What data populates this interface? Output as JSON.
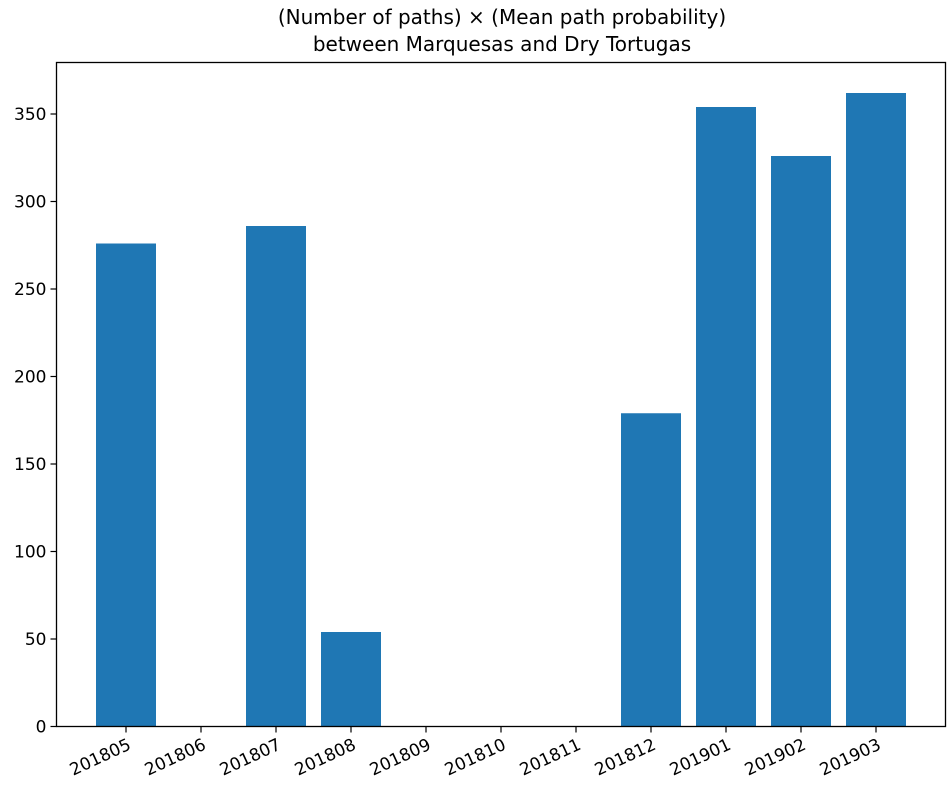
{
  "chart_data": {
    "type": "bar",
    "title": "(Number of paths) × (Mean path probability)",
    "subtitle": "between Marquesas and Dry Tortugas",
    "xlabel": "",
    "ylabel": "",
    "categories": [
      "201805",
      "201806",
      "201807",
      "201808",
      "201809",
      "201810",
      "201811",
      "201812",
      "201901",
      "201902",
      "201903"
    ],
    "values": [
      276,
      0,
      286,
      54,
      0,
      0,
      0,
      179,
      354,
      326,
      362
    ],
    "ylim": [
      0,
      380
    ],
    "yticks": [
      0,
      50,
      100,
      150,
      200,
      250,
      300,
      350
    ],
    "bar_color": "#1f77b4",
    "grid": false,
    "legend": "none"
  }
}
